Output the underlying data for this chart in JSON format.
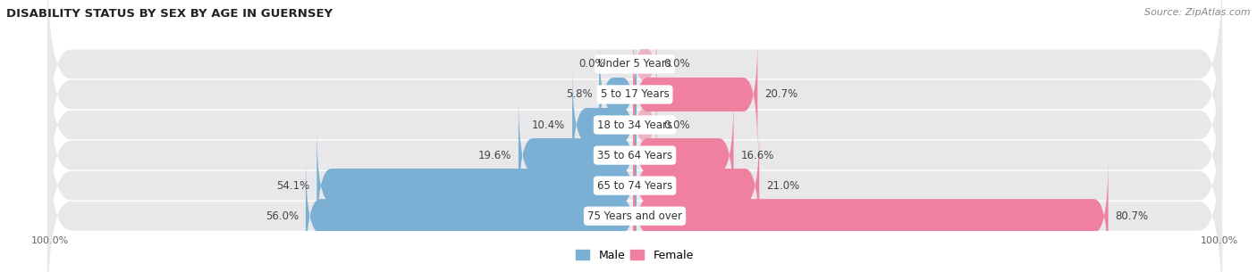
{
  "title": "DISABILITY STATUS BY SEX BY AGE IN GUERNSEY",
  "source": "Source: ZipAtlas.com",
  "categories": [
    "Under 5 Years",
    "5 to 17 Years",
    "18 to 34 Years",
    "35 to 64 Years",
    "65 to 74 Years",
    "75 Years and over"
  ],
  "male_values": [
    0.0,
    5.8,
    10.4,
    19.6,
    54.1,
    56.0
  ],
  "female_values": [
    0.0,
    20.7,
    0.0,
    16.6,
    21.0,
    80.7
  ],
  "male_color": "#7bafd4",
  "female_color": "#f080a0",
  "row_bg_color": "#ebebeb",
  "row_bg_color2": "#f5f5f5",
  "max_val": 100.0,
  "bar_height": 0.52,
  "title_fontsize": 9.5,
  "label_fontsize": 8.5,
  "tick_fontsize": 8,
  "source_fontsize": 8
}
